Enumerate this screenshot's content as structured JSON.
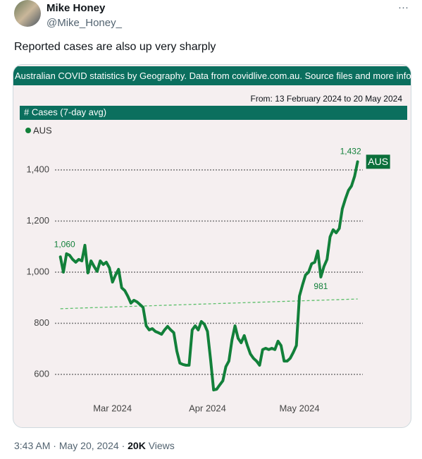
{
  "header": {
    "name": "Mike Honey",
    "handle": "@Mike_Honey_",
    "menu": "···"
  },
  "tweet_text": "Reported cases are also up very sharply",
  "card": {
    "banner": "Australian COVID statistics by Geography. Data from covidlive.com.au. Source files and more info on g",
    "date_range": "From: 13 February 2024 to 20 May 2024"
  },
  "chart_data": {
    "type": "line",
    "title": "# Cases (7-day avg)",
    "x": [
      "2024-02-13",
      "2024-02-14",
      "2024-02-15",
      "2024-02-16",
      "2024-02-17",
      "2024-02-18",
      "2024-02-19",
      "2024-02-20",
      "2024-02-21",
      "2024-02-22",
      "2024-02-23",
      "2024-02-24",
      "2024-02-25",
      "2024-02-26",
      "2024-02-27",
      "2024-02-28",
      "2024-02-29",
      "2024-03-01",
      "2024-03-02",
      "2024-03-03",
      "2024-03-04",
      "2024-03-05",
      "2024-03-06",
      "2024-03-07",
      "2024-03-08",
      "2024-03-09",
      "2024-03-10",
      "2024-03-11",
      "2024-03-12",
      "2024-03-13",
      "2024-03-14",
      "2024-03-15",
      "2024-03-16",
      "2024-03-17",
      "2024-03-18",
      "2024-03-19",
      "2024-03-20",
      "2024-03-21",
      "2024-03-22",
      "2024-03-23",
      "2024-03-24",
      "2024-03-25",
      "2024-03-26",
      "2024-03-27",
      "2024-03-28",
      "2024-03-29",
      "2024-03-30",
      "2024-03-31",
      "2024-04-01",
      "2024-04-02",
      "2024-04-03",
      "2024-04-04",
      "2024-04-05",
      "2024-04-06",
      "2024-04-07",
      "2024-04-08",
      "2024-04-09",
      "2024-04-10",
      "2024-04-11",
      "2024-04-12",
      "2024-04-13",
      "2024-04-14",
      "2024-04-15",
      "2024-04-16",
      "2024-04-17",
      "2024-04-18",
      "2024-04-19",
      "2024-04-20",
      "2024-04-21",
      "2024-04-22",
      "2024-04-23",
      "2024-04-24",
      "2024-04-25",
      "2024-04-26",
      "2024-04-27",
      "2024-04-28",
      "2024-04-29",
      "2024-04-30",
      "2024-05-01",
      "2024-05-02",
      "2024-05-03",
      "2024-05-04",
      "2024-05-05",
      "2024-05-06",
      "2024-05-07",
      "2024-05-08",
      "2024-05-09",
      "2024-05-10",
      "2024-05-11",
      "2024-05-12",
      "2024-05-13",
      "2024-05-14",
      "2024-05-15",
      "2024-05-16",
      "2024-05-17",
      "2024-05-18",
      "2024-05-19",
      "2024-05-20"
    ],
    "series": [
      {
        "name": "AUS",
        "color": "#12803a",
        "values": [
          1060,
          1000,
          1072,
          1066,
          1050,
          1039,
          1050,
          1044,
          1105,
          997,
          1044,
          1022,
          1003,
          1044,
          1030,
          1039,
          1017,
          961,
          989,
          1011,
          939,
          928,
          906,
          879,
          890,
          884,
          873,
          862,
          790,
          774,
          779,
          768,
          763,
          757,
          774,
          788,
          774,
          763,
          691,
          644,
          639,
          636,
          636,
          774,
          790,
          774,
          807,
          796,
          768,
          658,
          539,
          542,
          559,
          575,
          630,
          652,
          735,
          790,
          741,
          724,
          752,
          713,
          680,
          663,
          652,
          636,
          697,
          702,
          697,
          702,
          697,
          730,
          713,
          652,
          652,
          663,
          686,
          713,
          906,
          950,
          989,
          1000,
          1033,
          1039,
          1083,
          981,
          1022,
          1050,
          1138,
          1166,
          1154,
          1171,
          1248,
          1287,
          1320,
          1337,
          1375,
          1432
        ]
      }
    ],
    "trend_line": {
      "values": [
        857,
        895
      ],
      "color": "#5cbf6a"
    },
    "annotations": [
      {
        "x": "2024-02-13",
        "y": 1060,
        "label": "1,060"
      },
      {
        "x": "2024-05-20",
        "y": 1432,
        "label": "1,432"
      },
      {
        "x": "2024-05-08",
        "y": 981,
        "label": "981"
      }
    ],
    "xlim": [
      "2024-02-11",
      "2024-05-21"
    ],
    "xticks": [
      {
        "value": "2024-03-01",
        "label": "Mar 2024"
      },
      {
        "value": "2024-04-01",
        "label": "Apr 2024"
      },
      {
        "value": "2024-05-01",
        "label": "May 2024"
      }
    ],
    "ylim": [
      520,
      1520
    ],
    "yticks": [
      {
        "value": 600,
        "label": "600"
      },
      {
        "value": 800,
        "label": "800"
      },
      {
        "value": 1000,
        "label": "1,000"
      },
      {
        "value": 1200,
        "label": "1,200"
      },
      {
        "value": 1400,
        "label": "1,400"
      }
    ],
    "grid": true
  },
  "footer": {
    "time": "3:43 AM",
    "separator": "·",
    "date": "May 20, 2024",
    "views": "20K",
    "views_label": "Views"
  }
}
